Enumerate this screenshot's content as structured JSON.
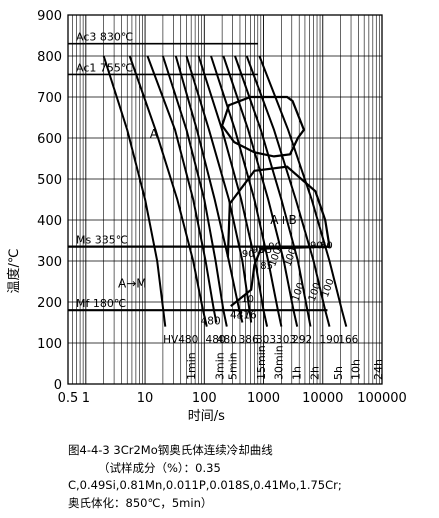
{
  "chart_data": {
    "type": "line",
    "xscale": "log",
    "xlim": [
      0.5,
      100000
    ],
    "ylim": [
      0,
      900
    ],
    "xlabel": "时间/s",
    "ylabel": "温度/℃",
    "x_ticks": [
      {
        "value": 0.5,
        "label": "0.5"
      },
      {
        "value": 1,
        "label": "1"
      },
      {
        "value": 10,
        "label": "10"
      },
      {
        "value": 100,
        "label": "100"
      },
      {
        "value": 1000,
        "label": "1000"
      },
      {
        "value": 10000,
        "label": "10000"
      },
      {
        "value": 100000,
        "label": "100000"
      }
    ],
    "y_ticks": [
      0,
      100,
      200,
      300,
      400,
      500,
      600,
      700,
      800,
      900
    ],
    "time_marks": [
      {
        "label": "1min",
        "value": 60
      },
      {
        "label": "3min",
        "value": 180
      },
      {
        "label": "5min",
        "value": 300
      },
      {
        "label": "15min",
        "value": 900
      },
      {
        "label": "30min",
        "value": 1800
      },
      {
        "label": "1h",
        "value": 3600
      },
      {
        "label": "2h",
        "value": 7200
      },
      {
        "label": "5h",
        "value": 18000
      },
      {
        "label": "10h",
        "value": 36000
      },
      {
        "label": "24h",
        "value": 86400
      }
    ],
    "reference_lines": [
      {
        "label": "Ac3 830℃",
        "value": 830
      },
      {
        "label": "Ac1 755℃",
        "value": 755
      },
      {
        "label": "Ms 335℃",
        "value": 335
      },
      {
        "label": "Mf 180℃",
        "value": 180
      }
    ],
    "region_labels": [
      {
        "label": "A",
        "x": 12,
        "y": 600
      },
      {
        "label": "A+B",
        "x": 1300,
        "y": 390
      },
      {
        "label": "A→M",
        "x": 3.5,
        "y": 235
      }
    ],
    "fraction_labels": [
      {
        "label": "90",
        "x": 430,
        "y": 310
      },
      {
        "label": "95",
        "x": 630,
        "y": 320
      },
      {
        "label": "95",
        "x": 850,
        "y": 320
      },
      {
        "label": "90",
        "x": 1200,
        "y": 328
      },
      {
        "label": "90",
        "x": 6100,
        "y": 330
      },
      {
        "label": "80",
        "x": 9000,
        "y": 330
      },
      {
        "label": "10",
        "x": 420,
        "y": 200
      },
      {
        "label": "85",
        "x": 880,
        "y": 280
      },
      {
        "label": "100",
        "x": 1550,
        "y": 285
      },
      {
        "label": "100",
        "x": 2800,
        "y": 285
      },
      {
        "label": "100",
        "x": 3800,
        "y": 200
      },
      {
        "label": "100",
        "x": 7200,
        "y": 200
      },
      {
        "label": "100",
        "x": 12000,
        "y": 210
      }
    ],
    "hardness_labels": [
      {
        "label": "HV480",
        "x": 40,
        "y": 100
      },
      {
        "label": "480",
        "x": 128,
        "y": 145
      },
      {
        "label": "480",
        "x": 155,
        "y": 100
      },
      {
        "label": "480",
        "x": 240,
        "y": 100
      },
      {
        "label": "441",
        "x": 400,
        "y": 160
      },
      {
        "label": "376",
        "x": 520,
        "y": 160
      },
      {
        "label": "386",
        "x": 560,
        "y": 100
      },
      {
        "label": "303",
        "x": 1100,
        "y": 100
      },
      {
        "label": "303",
        "x": 2400,
        "y": 100
      },
      {
        "label": "292",
        "x": 4500,
        "y": 100
      },
      {
        "label": "190",
        "x": 13000,
        "y": 100
      },
      {
        "label": "166",
        "x": 27000,
        "y": 100
      }
    ],
    "series": [
      {
        "points": [
          [
            2,
            800
          ],
          [
            5,
            620
          ],
          [
            10,
            450
          ],
          [
            16,
            300
          ],
          [
            22,
            140
          ]
        ]
      },
      {
        "points": [
          [
            5.5,
            800
          ],
          [
            15,
            620
          ],
          [
            35,
            450
          ],
          [
            65,
            300
          ],
          [
            95,
            180
          ],
          [
            110,
            140
          ]
        ]
      },
      {
        "points": [
          [
            11,
            800
          ],
          [
            32,
            620
          ],
          [
            65,
            450
          ],
          [
            105,
            300
          ],
          [
            145,
            180
          ],
          [
            160,
            150
          ]
        ]
      },
      {
        "points": [
          [
            20,
            800
          ],
          [
            50,
            620
          ],
          [
            100,
            450
          ],
          [
            155,
            300
          ],
          [
            210,
            180
          ],
          [
            240,
            140
          ]
        ]
      },
      {
        "points": [
          [
            33,
            800
          ],
          [
            75,
            620
          ],
          [
            150,
            450
          ],
          [
            260,
            300
          ],
          [
            390,
            180
          ],
          [
            440,
            150
          ]
        ]
      },
      {
        "points": [
          [
            50,
            800
          ],
          [
            120,
            620
          ],
          [
            260,
            450
          ],
          [
            440,
            300
          ],
          [
            580,
            180
          ],
          [
            620,
            150
          ]
        ]
      },
      {
        "points": [
          [
            80,
            800
          ],
          [
            200,
            620
          ],
          [
            420,
            450
          ],
          [
            720,
            300
          ],
          [
            1000,
            180
          ],
          [
            1150,
            140
          ]
        ]
      },
      {
        "points": [
          [
            130,
            800
          ],
          [
            330,
            620
          ],
          [
            700,
            450
          ],
          [
            1200,
            300
          ],
          [
            1750,
            180
          ],
          [
            2000,
            140
          ]
        ]
      },
      {
        "points": [
          [
            210,
            800
          ],
          [
            550,
            620
          ],
          [
            1200,
            450
          ],
          [
            2200,
            300
          ],
          [
            3200,
            180
          ],
          [
            3700,
            140
          ]
        ]
      },
      {
        "points": [
          [
            330,
            800
          ],
          [
            900,
            620
          ],
          [
            2000,
            450
          ],
          [
            3800,
            300
          ],
          [
            5500,
            180
          ],
          [
            6200,
            140
          ]
        ]
      },
      {
        "points": [
          [
            520,
            800
          ],
          [
            1500,
            620
          ],
          [
            3500,
            450
          ],
          [
            7000,
            300
          ],
          [
            11000,
            180
          ],
          [
            13000,
            140
          ]
        ]
      },
      {
        "points": [
          [
            850,
            800
          ],
          [
            2600,
            620
          ],
          [
            6500,
            450
          ],
          [
            13000,
            300
          ],
          [
            21000,
            180
          ],
          [
            25000,
            140
          ]
        ]
      }
    ],
    "pearlite_region": [
      {
        "x": 200,
        "y": 630
      },
      {
        "x": 260,
        "y": 680
      },
      {
        "x": 600,
        "y": 700
      },
      {
        "x": 2500,
        "y": 700
      },
      {
        "x": 3100,
        "y": 690
      },
      {
        "x": 4800,
        "y": 620
      },
      {
        "x": 3800,
        "y": 600
      },
      {
        "x": 2800,
        "y": 560
      },
      {
        "x": 1500,
        "y": 555
      },
      {
        "x": 700,
        "y": 565
      },
      {
        "x": 320,
        "y": 590
      },
      {
        "x": 200,
        "y": 630
      }
    ],
    "bainite_region": [
      {
        "x": 250,
        "y": 310
      },
      {
        "x": 270,
        "y": 440
      },
      {
        "x": 700,
        "y": 520
      },
      {
        "x": 2500,
        "y": 530
      },
      {
        "x": 7500,
        "y": 470
      },
      {
        "x": 11000,
        "y": 400
      },
      {
        "x": 13000,
        "y": 335
      },
      {
        "x": 900,
        "y": 330
      },
      {
        "x": 700,
        "y": 290
      },
      {
        "x": 620,
        "y": 230
      },
      {
        "x": 280,
        "y": 190
      }
    ]
  },
  "caption": {
    "line1": "图4-4-3  3Cr2Mo钢奥氏体连续冷却曲线",
    "line2": "（试样成分（%）：0.35",
    "line3": "C,0.49Si,0.81Mn,0.011P,0.018S,0.41Mo,1.75Cr;",
    "line4": "奥氏体化：850℃，5min）"
  }
}
